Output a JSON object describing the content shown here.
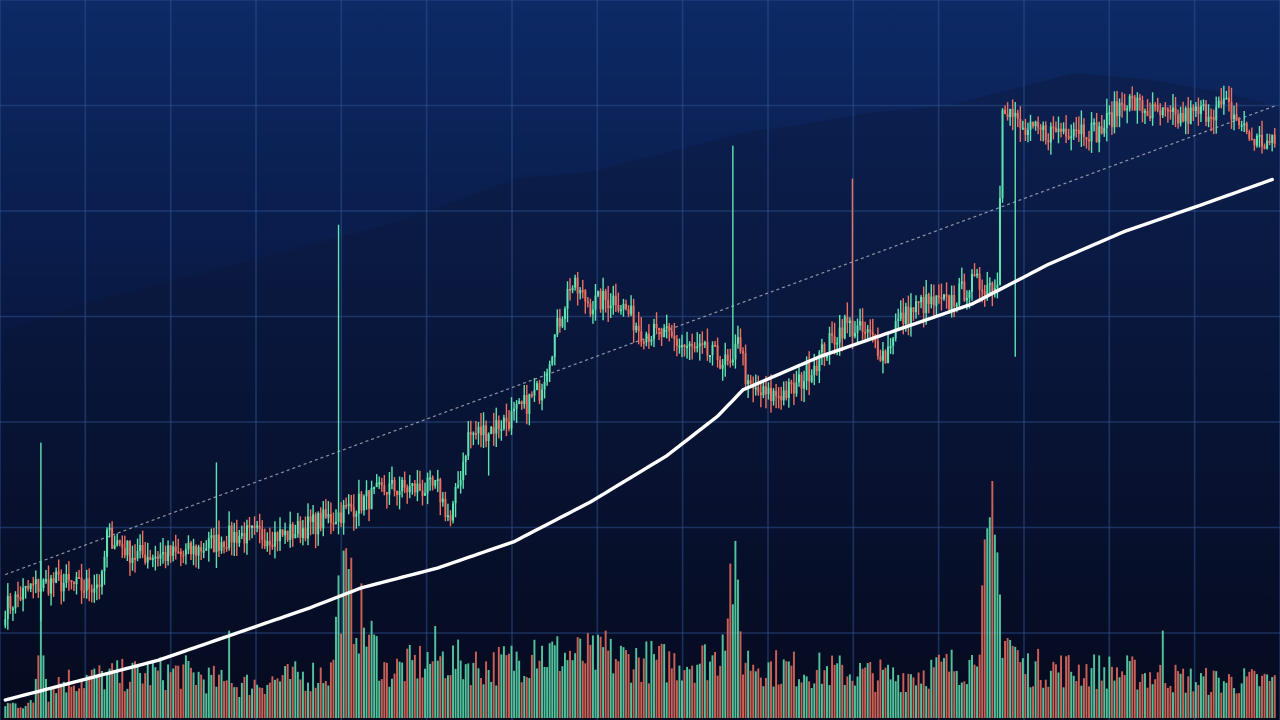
{
  "chart_data": {
    "type": "candlestick",
    "grid": true,
    "legend": "none",
    "ylim": [
      0,
      100
    ],
    "colors": {
      "up": "#5fe3b0",
      "down": "#f0705f",
      "background_top": "#0d2a66",
      "background_bottom": "#05091c",
      "grid": "#2b4f8c",
      "moving_average": "#ffffff",
      "trendline": "#c9c9d6",
      "mountain": "#0b1c45"
    },
    "price_anchors": {
      "x": [
        0,
        10,
        20,
        30,
        38,
        40,
        44,
        50,
        70,
        90,
        110,
        130,
        150,
        160,
        170,
        175,
        182,
        190,
        200,
        210,
        222,
        230,
        240,
        250,
        260,
        270,
        280,
        286,
        288,
        292,
        300,
        310,
        320,
        330,
        340,
        346,
        350,
        360,
        370,
        380,
        390,
        392,
        400,
        410,
        420,
        430,
        440,
        450,
        460,
        470,
        480,
        490,
        499
      ],
      "y": [
        14,
        17,
        18,
        17,
        18,
        25,
        24,
        22,
        22,
        25,
        25,
        28,
        32,
        32,
        32,
        27,
        40,
        41,
        43,
        47,
        63,
        60,
        61,
        56,
        55,
        53,
        52,
        50,
        56,
        47,
        46,
        47,
        52,
        57,
        55,
        52,
        57,
        60,
        60,
        63,
        63,
        91,
        86,
        86,
        87,
        86,
        91,
        89,
        88,
        89,
        90,
        85,
        84
      ]
    },
    "volume_anchors": {
      "x": [
        0,
        14,
        20,
        40,
        70,
        90,
        128,
        132,
        150,
        170,
        190,
        210,
        240,
        260,
        280,
        286,
        290,
        300,
        330,
        350,
        380,
        388,
        392,
        400,
        440,
        470,
        499
      ],
      "y": [
        3,
        3,
        8,
        9,
        10,
        7,
        10,
        30,
        10,
        13,
        11,
        14,
        13,
        12,
        13,
        33,
        13,
        11,
        10,
        9,
        12,
        38,
        20,
        11,
        10,
        8,
        8
      ]
    },
    "volume_spikes": [
      {
        "x": 14,
        "y": 34
      },
      {
        "x": 88,
        "y": 19
      },
      {
        "x": 131,
        "y": 31
      },
      {
        "x": 169,
        "y": 20
      },
      {
        "x": 208,
        "y": 17
      },
      {
        "x": 215,
        "y": 15
      },
      {
        "x": 236,
        "y": 19
      },
      {
        "x": 287,
        "y": 37
      },
      {
        "x": 390,
        "y": 36
      },
      {
        "x": 455,
        "y": 19
      }
    ],
    "price_spikes": [
      {
        "x": 14,
        "high": 39,
        "low": 12
      },
      {
        "x": 131,
        "high": 72,
        "low": 44
      },
      {
        "x": 286,
        "high": 84,
        "low": 57
      },
      {
        "x": 333,
        "high": 79,
        "low": 62
      },
      {
        "x": 397,
        "high": 80,
        "low": 52
      },
      {
        "x": 83,
        "high": 36,
        "low": 20
      },
      {
        "x": 190,
        "high": 38,
        "low": 34
      }
    ],
    "moving_average": {
      "x": [
        0,
        30,
        60,
        90,
        120,
        140,
        170,
        200,
        230,
        260,
        280,
        290,
        320,
        350,
        380,
        410,
        440,
        470,
        499
      ],
      "y": [
        0,
        3,
        6,
        10,
        14,
        17,
        20,
        24,
        30,
        37,
        43,
        47,
        52,
        56,
        60,
        66,
        71,
        75,
        79
      ]
    },
    "trendline": {
      "x": [
        0,
        499
      ],
      "y": [
        19,
        90
      ]
    },
    "mountain": {
      "x": [
        0,
        30,
        60,
        90,
        120,
        150,
        180,
        200,
        230,
        260,
        290,
        310,
        340,
        370,
        400,
        420,
        450,
        480,
        499
      ],
      "y": [
        56,
        60,
        63,
        66,
        69,
        72,
        76,
        79,
        80,
        83,
        86,
        87,
        89,
        90,
        93,
        95,
        94,
        92,
        90
      ]
    }
  }
}
